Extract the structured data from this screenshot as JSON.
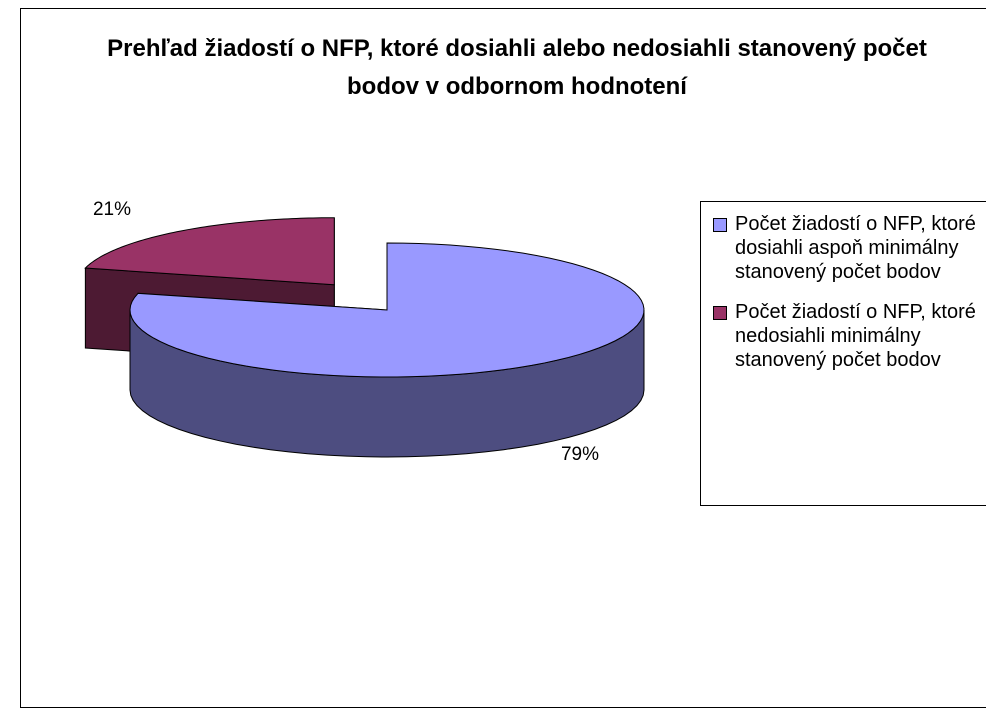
{
  "chart_data": {
    "type": "pie",
    "title": "Prehľad žiadostí o NFP, ktoré dosiahli alebo nedosiahli stanovený počet bodov v odbornom hodnotení",
    "categories": [
      "Počet žiadostí o NFP, ktoré dosiahli aspoň minimálny stanovený počet bodov",
      "Počet žiadostí o NFP, ktoré nedosiahli minimálny stanovený počet bodov"
    ],
    "values": [
      79,
      21
    ],
    "value_labels": [
      "79%",
      "21%"
    ],
    "colors": [
      "#9999ff",
      "#993366"
    ],
    "legend": "right"
  }
}
